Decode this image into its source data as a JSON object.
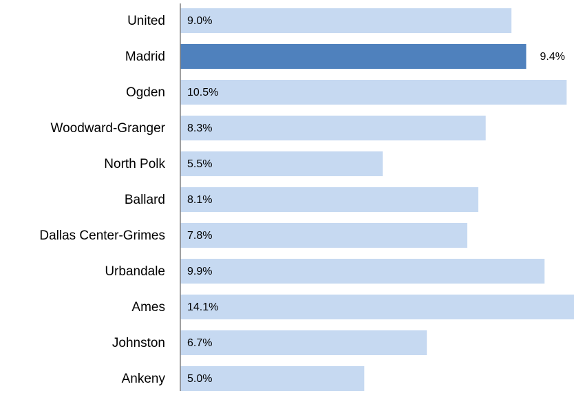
{
  "chart_data": {
    "type": "hbar",
    "categories": [
      "United",
      "Madrid",
      "Ogden",
      "Woodward-Granger",
      "North Polk",
      "Ballard",
      "Dallas Center-Grimes",
      "Urbandale",
      "Ames",
      "Johnston",
      "Ankeny"
    ],
    "values": [
      9.0,
      9.4,
      10.5,
      8.3,
      5.5,
      8.1,
      7.8,
      9.9,
      14.1,
      6.7,
      5.0
    ],
    "value_labels": [
      "9.0%",
      "9.4%",
      "10.5%",
      "8.3%",
      "5.5%",
      "8.1%",
      "7.8%",
      "9.9%",
      "14.1%",
      "6.7%",
      "5.0%"
    ],
    "colors": [
      "#c6d9f1",
      "#4f81bd",
      "#c6d9f1",
      "#c6d9f1",
      "#c6d9f1",
      "#c6d9f1",
      "#c6d9f1",
      "#c6d9f1",
      "#c6d9f1",
      "#c6d9f1",
      "#c6d9f1"
    ],
    "label_positions": [
      "inside",
      "outside",
      "inside",
      "inside",
      "inside",
      "inside",
      "inside",
      "inside",
      "inside",
      "inside",
      "inside"
    ],
    "xlim": [
      0,
      10.7
    ]
  }
}
